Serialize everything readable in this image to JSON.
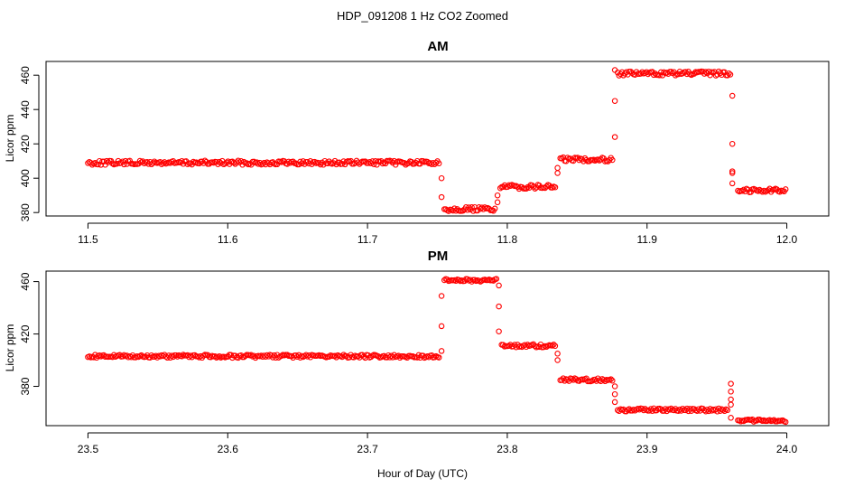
{
  "figure": {
    "title": "HDP_091208  1 Hz CO2 Zoomed",
    "xlabel": "Hour of Day (UTC)"
  },
  "colors": {
    "points": "#ff0000",
    "axes": "#000000",
    "background": "#ffffff"
  },
  "chart_data": [
    {
      "type": "scatter",
      "title": "AM",
      "xlabel": "Hour of Day (UTC)",
      "ylabel": "Licor ppm",
      "xlim": [
        11.47,
        12.03
      ],
      "ylim": [
        378,
        468
      ],
      "xticks": [
        "11.5",
        "11.6",
        "11.7",
        "11.8",
        "11.9",
        "12.0"
      ],
      "yticks": [
        "380",
        "400",
        "420",
        "440",
        "460"
      ],
      "series": [
        {
          "marker": "open circle",
          "segments": [
            {
              "x": [
                11.5,
                11.752
              ],
              "y": 409
            },
            {
              "x": [
                11.755,
                11.792
              ],
              "y": 382
            },
            {
              "x": [
                11.795,
                11.835
              ],
              "y": 395
            },
            {
              "x": [
                11.838,
                11.876
              ],
              "y": 411
            },
            {
              "x": [
                11.879,
                11.96
              ],
              "y": 461
            },
            {
              "x": [
                11.965,
                12.0
              ],
              "y": 393
            }
          ],
          "transitions": [
            {
              "x": 11.753,
              "y": [
                400,
                389
              ]
            },
            {
              "x": 11.793,
              "y": [
                386,
                390
              ]
            },
            {
              "x": 11.836,
              "y": [
                403,
                406
              ]
            },
            {
              "x": 11.877,
              "y": [
                424,
                445,
                463
              ]
            },
            {
              "x": 11.961,
              "y": [
                448,
                420,
                404,
                403,
                397
              ]
            }
          ]
        }
      ]
    },
    {
      "type": "scatter",
      "title": "PM",
      "xlabel": "Hour of Day (UTC)",
      "ylabel": "Licor ppm",
      "xlim": [
        23.47,
        24.03
      ],
      "ylim": [
        350,
        468
      ],
      "xticks": [
        "23.5",
        "23.6",
        "23.7",
        "23.8",
        "23.9",
        "24.0"
      ],
      "yticks": [
        "380",
        "420",
        "460"
      ],
      "series": [
        {
          "marker": "open circle",
          "segments": [
            {
              "x": [
                23.5,
                23.752
              ],
              "y": 403
            },
            {
              "x": [
                23.755,
                23.793
              ],
              "y": 461
            },
            {
              "x": [
                23.796,
                23.835
              ],
              "y": 411
            },
            {
              "x": [
                23.838,
                23.876
              ],
              "y": 385
            },
            {
              "x": [
                23.879,
                23.958
              ],
              "y": 362
            },
            {
              "x": [
                23.965,
                24.0
              ],
              "y": 354
            }
          ],
          "transitions": [
            {
              "x": 23.753,
              "y": [
                407,
                426,
                449
              ]
            },
            {
              "x": 23.794,
              "y": [
                457,
                441,
                422
              ]
            },
            {
              "x": 23.836,
              "y": [
                405,
                400
              ]
            },
            {
              "x": 23.877,
              "y": [
                380,
                374,
                368
              ]
            },
            {
              "x": 23.96,
              "y": [
                382,
                376,
                370,
                366,
                356
              ]
            }
          ]
        }
      ]
    }
  ]
}
